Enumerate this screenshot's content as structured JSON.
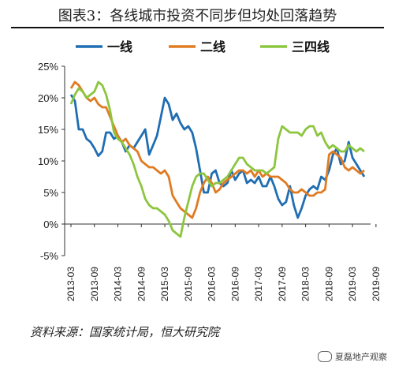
{
  "header": {
    "title": "图表3：各线城市投资不同步但均处回落趋势"
  },
  "footer": {
    "source": "资料来源：国家统计局，恒大研究院",
    "watermark": "夏磊地产观察"
  },
  "chart_data": {
    "type": "line",
    "ylim": [
      -5,
      25
    ],
    "y_ticks": [
      -5,
      0,
      5,
      10,
      15,
      20,
      25
    ],
    "y_tick_labels": [
      "-5%",
      "0%",
      "5%",
      "10%",
      "15%",
      "20%",
      "25%"
    ],
    "x_tick_labels": [
      "2013-03",
      "2013-09",
      "2014-03",
      "2014-09",
      "2015-03",
      "2015-09",
      "2016-03",
      "2016-09",
      "2017-03",
      "2017-09",
      "2018-03",
      "2018-09",
      "2019-03",
      "2019-09"
    ],
    "x_start": "2013-03",
    "legend_position": "top",
    "series": [
      {
        "name": "一线",
        "color": "#1f6db3",
        "values": [
          20.5,
          19.5,
          15.0,
          15.0,
          13.5,
          13.0,
          12.0,
          10.8,
          11.5,
          14.5,
          14.5,
          13.5,
          14.0,
          13.0,
          11.5,
          12.5,
          12.0,
          13.0,
          14.0,
          15.0,
          11.0,
          12.5,
          14.0,
          17.0,
          20.0,
          19.0,
          16.5,
          17.5,
          16.0,
          15.0,
          15.5,
          14.5,
          12.0,
          8.5,
          5.0,
          5.0,
          8.0,
          8.5,
          6.5,
          6.0,
          6.5,
          8.5,
          7.0,
          8.0,
          8.5,
          6.5,
          7.0,
          6.5,
          7.5,
          6.0,
          6.0,
          7.5,
          6.0,
          4.0,
          3.0,
          3.5,
          6.0,
          3.0,
          1.0,
          2.5,
          4.5,
          5.5,
          6.0,
          5.5,
          7.5,
          7.0,
          8.5,
          11.0,
          12.0,
          9.5,
          10.0,
          13.0,
          10.5,
          9.5,
          8.5,
          7.5
        ]
      },
      {
        "name": "二线",
        "color": "#e07b22",
        "values": [
          21.5,
          22.5,
          22.0,
          21.0,
          20.0,
          19.5,
          20.0,
          19.0,
          18.5,
          18.5,
          17.0,
          15.5,
          14.0,
          13.0,
          13.5,
          12.5,
          12.0,
          11.5,
          10.0,
          9.5,
          9.0,
          9.0,
          8.5,
          8.0,
          8.5,
          7.5,
          4.5,
          3.5,
          2.5,
          2.0,
          1.5,
          1.0,
          2.5,
          5.0,
          6.5,
          7.5,
          6.5,
          5.0,
          5.5,
          6.5,
          7.0,
          7.5,
          8.0,
          8.5,
          8.5,
          8.0,
          8.5,
          7.5,
          8.5,
          7.5,
          8.0,
          7.5,
          7.5,
          7.5,
          7.0,
          6.5,
          5.5,
          5.0,
          5.0,
          5.5,
          5.0,
          4.5,
          4.5,
          5.0,
          5.0,
          5.5,
          11.0,
          11.5,
          11.0,
          10.5,
          9.0,
          8.5,
          9.0,
          8.5,
          8.0,
          8.5
        ]
      },
      {
        "name": "三四线",
        "color": "#8cc63f",
        "values": [
          19.0,
          20.5,
          21.5,
          21.0,
          20.0,
          20.5,
          21.0,
          22.5,
          22.0,
          20.5,
          18.0,
          14.5,
          13.5,
          13.0,
          12.0,
          11.0,
          9.5,
          7.5,
          6.0,
          4.0,
          3.0,
          2.5,
          2.5,
          2.0,
          1.5,
          0.5,
          -1.0,
          -1.5,
          -2.0,
          1.0,
          3.5,
          6.0,
          7.5,
          8.0,
          8.0,
          7.0,
          6.0,
          6.5,
          6.5,
          7.0,
          7.5,
          8.5,
          9.5,
          10.5,
          10.5,
          9.5,
          9.0,
          8.5,
          8.5,
          8.5,
          8.0,
          8.5,
          9.0,
          13.5,
          15.5,
          15.0,
          14.5,
          14.5,
          14.5,
          14.0,
          15.0,
          15.5,
          15.5,
          14.0,
          14.5,
          13.0,
          12.0,
          12.5,
          12.0,
          11.5,
          11.5,
          12.5,
          12.0,
          11.5,
          12.0,
          11.5
        ]
      }
    ]
  }
}
